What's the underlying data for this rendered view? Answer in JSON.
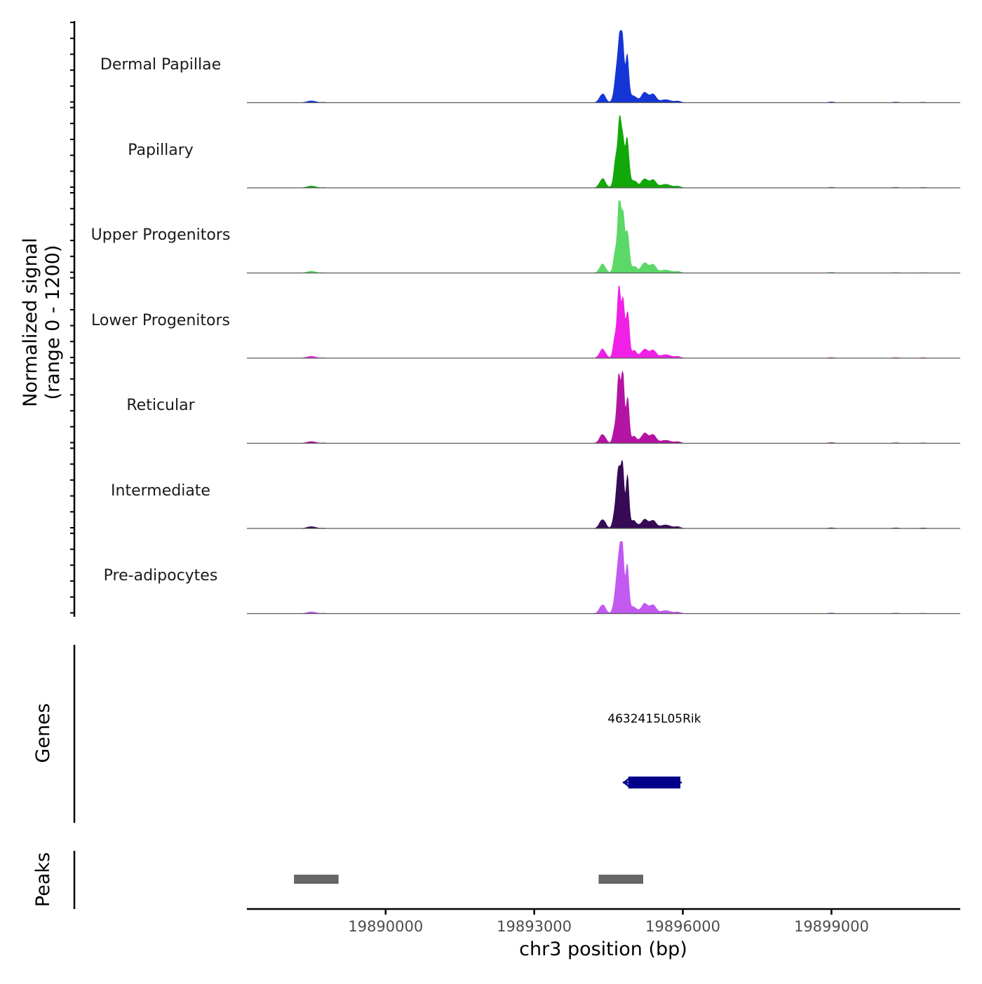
{
  "chart_data": {
    "type": "area",
    "title": "",
    "ylabel_line1": "Normalized signal",
    "ylabel_line2": "(range 0 - 1200)",
    "yrange": [
      0,
      1200
    ],
    "xlabel": "chr3 position (bp)",
    "xlim": [
      19887200,
      19901600
    ],
    "xticks": [
      19890000,
      19893000,
      19896000,
      19899000
    ],
    "xtick_labels": [
      "19890000",
      "19893000",
      "19896000",
      "19899000"
    ],
    "baseline_color": "#595959",
    "tracks": [
      {
        "name": "Dermal Papillae",
        "color": "#1535d6"
      },
      {
        "name": "Papillary",
        "color": "#12a80a"
      },
      {
        "name": "Upper Progenitors",
        "color": "#5bd867"
      },
      {
        "name": "Lower Progenitors",
        "color": "#f020e6"
      },
      {
        "name": "Reticular",
        "color": "#b414a3"
      },
      {
        "name": "Intermediate",
        "color": "#360a55"
      },
      {
        "name": "Pre-adipocytes",
        "color": "#c25af2"
      }
    ],
    "signal_peaks": [
      {
        "center": 19888500,
        "width": 90,
        "height": 30
      },
      {
        "center": 19888750,
        "width": 40,
        "height": 6
      },
      {
        "center": 19894380,
        "width": 60,
        "height": 150
      },
      {
        "center": 19894650,
        "width": 45,
        "height": 400
      },
      {
        "center": 19894720,
        "width": 35,
        "height": 1000
      },
      {
        "center": 19894790,
        "width": 30,
        "height": 900
      },
      {
        "center": 19894880,
        "width": 35,
        "height": 780
      },
      {
        "center": 19895010,
        "width": 60,
        "height": 120
      },
      {
        "center": 19895230,
        "width": 70,
        "height": 160
      },
      {
        "center": 19895400,
        "width": 60,
        "height": 130
      },
      {
        "center": 19895650,
        "width": 110,
        "height": 55
      },
      {
        "center": 19895900,
        "width": 60,
        "height": 25
      },
      {
        "center": 19899000,
        "width": 60,
        "height": 12
      },
      {
        "center": 19900300,
        "width": 60,
        "height": 10
      },
      {
        "center": 19900850,
        "width": 60,
        "height": 8
      }
    ],
    "genes_label": "Genes",
    "genes": [
      {
        "name": "4632415L05Rik",
        "start": 19894900,
        "end": 19895950,
        "strand": "-",
        "color": "#00008b"
      }
    ],
    "peaks_label": "Peaks",
    "peak_regions": [
      {
        "start": 19888150,
        "end": 19889050
      },
      {
        "start": 19894300,
        "end": 19895200
      }
    ],
    "peak_color": "#666666"
  }
}
